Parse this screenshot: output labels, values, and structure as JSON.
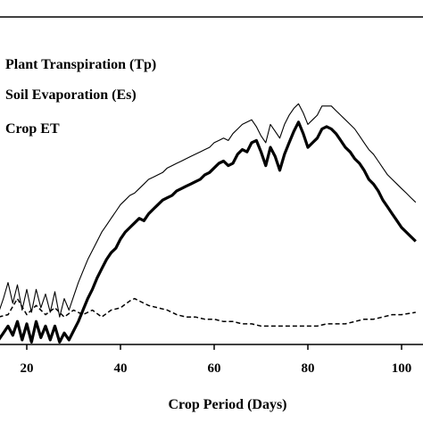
{
  "chart_data": {
    "type": "line",
    "title": "",
    "xlabel": "Crop Period (Days)",
    "ylabel": "",
    "xlim": [
      14,
      103
    ],
    "ylim": [
      0,
      100
    ],
    "grid": false,
    "legend_position": "top-left",
    "x_ticks": [
      20,
      40,
      60,
      80,
      100
    ],
    "x_tick_labels": [
      "20",
      "40",
      "60",
      "80",
      "100"
    ],
    "legend": [
      "Plant Transpiration (Tp)",
      "Soil Evaporation (Es)",
      "Crop ET"
    ],
    "series": [
      {
        "name": "Plant Transpiration (Tp)",
        "style": "thick",
        "x": [
          14,
          15,
          16,
          17,
          18,
          19,
          20,
          21,
          22,
          23,
          24,
          25,
          26,
          27,
          28,
          29,
          30,
          31,
          32,
          33,
          34,
          35,
          36,
          37,
          38,
          39,
          40,
          41,
          42,
          43,
          44,
          45,
          46,
          47,
          48,
          49,
          50,
          51,
          52,
          53,
          54,
          55,
          56,
          57,
          58,
          59,
          60,
          61,
          62,
          63,
          64,
          65,
          66,
          67,
          68,
          69,
          70,
          71,
          72,
          73,
          74,
          75,
          76,
          77,
          78,
          79,
          80,
          81,
          82,
          83,
          84,
          85,
          86,
          87,
          88,
          89,
          90,
          91,
          92,
          93,
          94,
          95,
          96,
          97,
          98,
          99,
          100,
          101,
          102,
          103
        ],
        "values": [
          2,
          5,
          8,
          4,
          10,
          2,
          9,
          1,
          10,
          3,
          8,
          2,
          8,
          1,
          5,
          2,
          6,
          10,
          15,
          20,
          24,
          29,
          33,
          37,
          40,
          42,
          46,
          49,
          51,
          53,
          55,
          54,
          57,
          59,
          61,
          63,
          64,
          65,
          67,
          68,
          69,
          70,
          71,
          72,
          74,
          75,
          77,
          79,
          80,
          78,
          79,
          83,
          85,
          84,
          88,
          89,
          84,
          78,
          86,
          82,
          76,
          83,
          88,
          93,
          97,
          92,
          86,
          88,
          90,
          94,
          95,
          94,
          92,
          89,
          86,
          84,
          81,
          79,
          76,
          72,
          70,
          67,
          63,
          60,
          57,
          54,
          51,
          49,
          47,
          45
        ]
      },
      {
        "name": "Soil Evaporation (Es)",
        "style": "dashed",
        "x": [
          14,
          16,
          18,
          20,
          22,
          24,
          26,
          28,
          30,
          32,
          34,
          36,
          38,
          40,
          42,
          43,
          44,
          46,
          48,
          50,
          52,
          54,
          56,
          58,
          60,
          62,
          64,
          66,
          68,
          70,
          72,
          74,
          76,
          78,
          80,
          82,
          84,
          86,
          88,
          90,
          92,
          94,
          96,
          98,
          100,
          103
        ],
        "values": [
          12,
          13,
          20,
          13,
          17,
          13,
          16,
          12,
          15,
          13,
          15,
          12,
          15,
          16,
          19,
          20,
          19,
          17,
          16,
          15,
          13,
          12,
          12,
          11,
          11,
          10,
          10,
          9,
          9,
          8,
          8,
          8,
          8,
          8,
          8,
          8,
          9,
          9,
          9,
          10,
          11,
          11,
          12,
          13,
          13,
          14
        ]
      },
      {
        "name": "Crop ET",
        "style": "thin",
        "x": [
          14,
          15,
          16,
          17,
          18,
          19,
          20,
          21,
          22,
          23,
          24,
          25,
          26,
          27,
          28,
          29,
          30,
          31,
          32,
          33,
          34,
          35,
          36,
          37,
          38,
          39,
          40,
          41,
          42,
          43,
          44,
          45,
          46,
          47,
          48,
          49,
          50,
          51,
          52,
          53,
          54,
          55,
          56,
          57,
          58,
          59,
          60,
          61,
          62,
          63,
          64,
          65,
          66,
          67,
          68,
          69,
          70,
          71,
          72,
          73,
          74,
          75,
          76,
          77,
          78,
          79,
          80,
          81,
          82,
          83,
          84,
          85,
          86,
          87,
          88,
          89,
          90,
          91,
          92,
          93,
          94,
          95,
          96,
          97,
          98,
          99,
          100,
          101,
          102,
          103
        ],
        "values": [
          14,
          20,
          27,
          18,
          26,
          15,
          24,
          14,
          24,
          16,
          22,
          14,
          23,
          12,
          20,
          15,
          21,
          27,
          32,
          37,
          41,
          45,
          49,
          52,
          55,
          58,
          61,
          63,
          65,
          66,
          68,
          70,
          72,
          73,
          74,
          75,
          77,
          78,
          79,
          80,
          81,
          82,
          83,
          84,
          85,
          86,
          88,
          89,
          90,
          89,
          92,
          94,
          96,
          97,
          98,
          95,
          91,
          88,
          96,
          93,
          90,
          96,
          100,
          103,
          105,
          101,
          96,
          98,
          100,
          104,
          104,
          104,
          102,
          100,
          98,
          96,
          94,
          91,
          88,
          85,
          83,
          80,
          77,
          74,
          72,
          70,
          68,
          66,
          64,
          62
        ]
      }
    ]
  }
}
